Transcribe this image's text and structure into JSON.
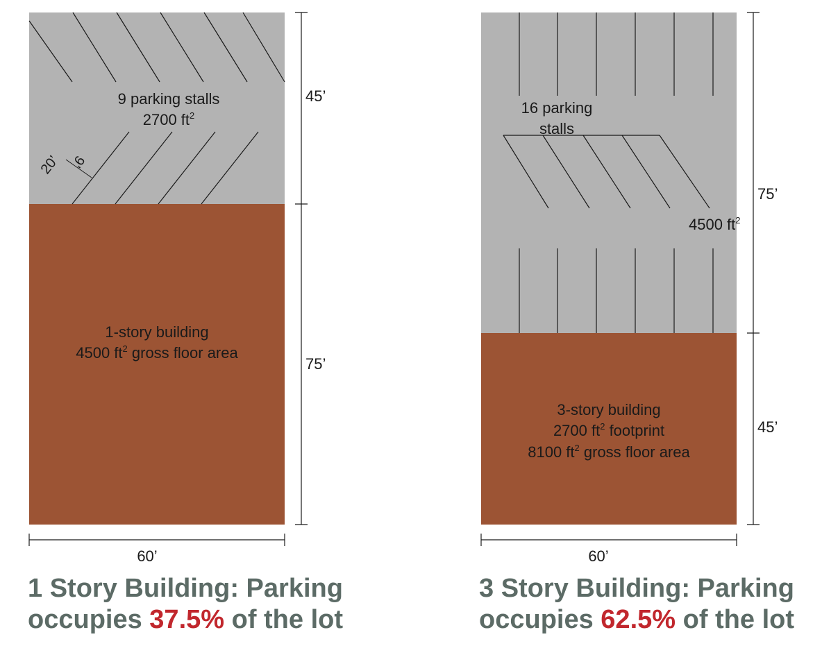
{
  "colors": {
    "parking": "#b3b3b3",
    "building": "#9c5434",
    "highlight": "#c1272d",
    "caption": "#5c6b66"
  },
  "left": {
    "parking_label": "9 parking stalls",
    "parking_area_value": "2700 ft",
    "parking_area_sup": "2",
    "stall_depth": "20’",
    "stall_width": "9’",
    "parking_depth": "45’",
    "building_line1": "1-story building",
    "building_line2_value": "4500 ft",
    "building_line2_sup": "2",
    "building_line2_rest": " gross floor area",
    "building_depth": "75’",
    "lot_width": "60’",
    "caption_line1": "1 Story Building: Parking",
    "caption_pre": "occupies ",
    "caption_pct": "37.5%",
    "caption_post": " of the lot"
  },
  "right": {
    "parking_label_line1": "16 parking",
    "parking_label_line2": "stalls",
    "parking_area_value": "4500 ft",
    "parking_area_sup": "2",
    "parking_depth": "75’",
    "building_line1": "3-story building",
    "building_line2_value": "2700 ft",
    "building_line2_sup": "2",
    "building_line2_rest": " footprint",
    "building_line3_value": "8100 ft",
    "building_line3_sup": "2",
    "building_line3_rest": " gross floor area",
    "building_depth": "45’",
    "lot_width": "60’",
    "caption_line1": "3 Story Building: Parking",
    "caption_pre": "occupies ",
    "caption_pct": "62.5%",
    "caption_post": " of the lot"
  }
}
